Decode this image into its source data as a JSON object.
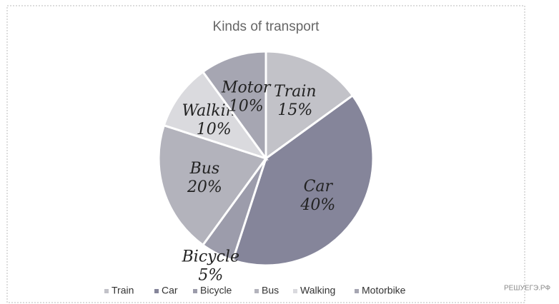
{
  "chart_data": {
    "type": "pie",
    "title": "Kinds of transport",
    "categories": [
      "Train",
      "Car",
      "Bicycle",
      "Bus",
      "Walking",
      "Motorbike"
    ],
    "values": [
      15,
      40,
      5,
      20,
      10,
      10
    ],
    "value_labels": [
      "15%",
      "40%",
      "5%",
      "20%",
      "10%",
      "10%"
    ],
    "slice_labels": [
      "Train",
      "Car",
      "Bicycle",
      "Bus",
      "Walking",
      "Motor"
    ],
    "colors": [
      "#c2c2c8",
      "#85859a",
      "#9c9cab",
      "#b3b3bc",
      "#dadade",
      "#a6a6b2"
    ],
    "legend": "bottom"
  },
  "watermark": "РЕШУЕГЭ.РФ"
}
